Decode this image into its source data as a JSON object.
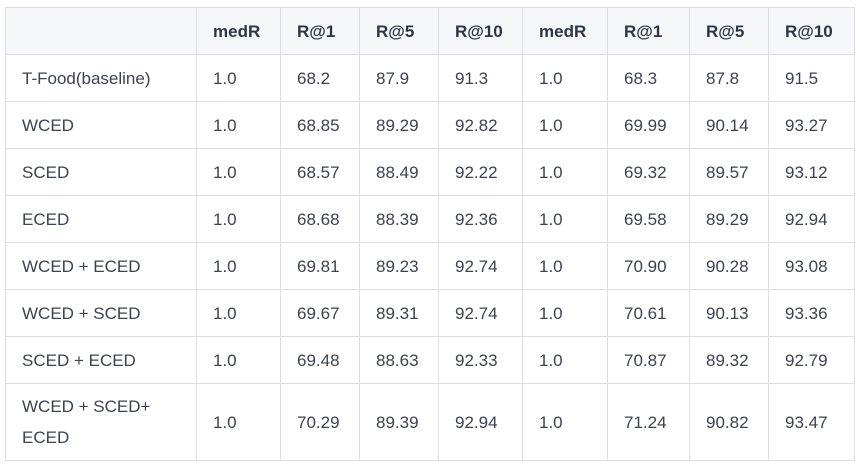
{
  "table": {
    "headers": [
      "",
      "medR",
      "R@1",
      "R@5",
      "R@10",
      "medR",
      "R@1",
      "R@5",
      "R@10"
    ],
    "rows": [
      [
        "T-Food(baseline)",
        "1.0",
        "68.2",
        "87.9",
        "91.3",
        "1.0",
        "68.3",
        "87.8",
        "91.5"
      ],
      [
        "WCED",
        "1.0",
        "68.85",
        "89.29",
        "92.82",
        "1.0",
        "69.99",
        "90.14",
        "93.27"
      ],
      [
        "SCED",
        "1.0",
        "68.57",
        "88.49",
        "92.22",
        "1.0",
        "69.32",
        "89.57",
        "93.12"
      ],
      [
        "ECED",
        "1.0",
        "68.68",
        "88.39",
        "92.36",
        "1.0",
        "69.58",
        "89.29",
        "92.94"
      ],
      [
        "WCED + ECED",
        "1.0",
        "69.81",
        "89.23",
        "92.74",
        "1.0",
        "70.90",
        "90.28",
        "93.08"
      ],
      [
        "WCED + SCED",
        "1.0",
        "69.67",
        "89.31",
        "92.74",
        "1.0",
        "70.61",
        "90.13",
        "93.36"
      ],
      [
        "SCED + ECED",
        "1.0",
        "69.48",
        "88.63",
        "92.33",
        "1.0",
        "70.87",
        "89.32",
        "92.79"
      ],
      [
        "WCED + SCED+ ECED",
        "1.0",
        "70.29",
        "89.39",
        "92.94",
        "1.0",
        "71.24",
        "90.82",
        "93.47"
      ]
    ]
  }
}
